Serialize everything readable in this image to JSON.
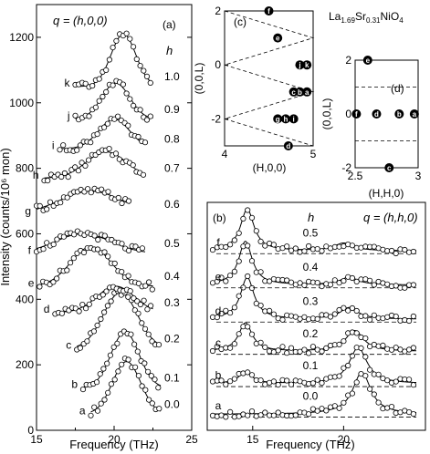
{
  "chart_data": [
    {
      "panel": "a",
      "type": "scatter",
      "panel_label": "(a)",
      "q_label": "q = (h,0,0)",
      "h_header": "h",
      "xlabel": "Frequency  (THz)",
      "ylabel": "Intensity  (counts/10⁶ mon)",
      "xlim": [
        15,
        25
      ],
      "ylim": [
        0,
        1300
      ],
      "xticks": [
        15,
        20,
        25
      ],
      "yticks": [
        0,
        200,
        400,
        600,
        800,
        1000,
        1200
      ],
      "series": [
        {
          "letter": "a",
          "h": "0.0",
          "offset": 50,
          "peak": 20.8,
          "amp": 160,
          "width": 0.9,
          "xmin": 18.5,
          "xmax": 23.0
        },
        {
          "letter": "b",
          "h": "0.1",
          "offset": 130,
          "peak": 20.7,
          "amp": 170,
          "width": 0.9,
          "xmin": 18.0,
          "xmax": 23.0
        },
        {
          "letter": "c",
          "h": "0.2",
          "offset": 250,
          "peak": 20.4,
          "amp": 170,
          "width": 1.1,
          "xmin": 17.6,
          "xmax": 23.0
        },
        {
          "letter": "d",
          "h": "0.3",
          "offset": 360,
          "peak": 20.1,
          "amp": 80,
          "width": 1.2,
          "xmin": 16.2,
          "xmax": 22.5
        },
        {
          "letter": "e",
          "h": "0.4",
          "offset": 440,
          "peak": 18.5,
          "amp": 120,
          "width": 1.3,
          "xmin": 15.2,
          "xmax": 22.5
        },
        {
          "letter": "f",
          "h": "0.5",
          "offset": 540,
          "peak": 18.0,
          "amp": 60,
          "width": 1.8,
          "xmin": 15.0,
          "xmax": 22.0
        },
        {
          "letter": "g",
          "h": "0.6",
          "offset": 660,
          "peak": 18.5,
          "amp": 70,
          "width": 2.0,
          "xmin": 15.0,
          "xmax": 21.0
        },
        {
          "letter": "h",
          "h": "0.7",
          "offset": 770,
          "peak": 19.5,
          "amp": 80,
          "width": 1.3,
          "xmin": 15.5,
          "xmax": 22.0
        },
        {
          "letter": "i",
          "h": "0.8",
          "offset": 860,
          "peak": 20.0,
          "amp": 90,
          "width": 1.0,
          "xmin": 16.5,
          "xmax": 22.0
        },
        {
          "letter": "j",
          "h": "0.9",
          "offset": 950,
          "peak": 20.1,
          "amp": 110,
          "width": 0.9,
          "xmin": 17.5,
          "xmax": 22.5
        },
        {
          "letter": "k",
          "h": "1.0",
          "offset": 1050,
          "peak": 20.6,
          "amp": 160,
          "width": 0.8,
          "xmin": 17.5,
          "xmax": 22.5
        }
      ]
    },
    {
      "panel": "b",
      "type": "scatter",
      "panel_label": "(b)",
      "q_label": "q = (h,h,0)",
      "h_header": "h",
      "xlabel": "Frequency  (THz)",
      "xlim": [
        12.5,
        24.5
      ],
      "xticks": [
        15,
        20
      ],
      "ylim": [
        0,
        12
      ],
      "series": [
        {
          "letter": "a",
          "h": "0.0",
          "base": 0.7,
          "p1": 14.6,
          "a1": 0.0,
          "p2": 21.0,
          "a2": 2.2
        },
        {
          "letter": "b",
          "h": "0.1",
          "base": 2.3,
          "p1": 14.6,
          "a1": 0.6,
          "p2": 20.8,
          "a2": 1.9
        },
        {
          "letter": "c",
          "h": "0.2",
          "base": 4.0,
          "p1": 14.6,
          "a1": 1.5,
          "p2": 20.6,
          "a2": 1.1
        },
        {
          "letter": "d",
          "h": "0.3",
          "base": 5.7,
          "p1": 14.7,
          "a1": 2.2,
          "p2": 20.3,
          "a2": 0.6
        },
        {
          "letter": "e",
          "h": "0.4",
          "base": 7.5,
          "p1": 14.6,
          "a1": 2.3,
          "p2": 20.3,
          "a2": 0.4
        },
        {
          "letter": "f",
          "h": "0.5",
          "base": 9.3,
          "p1": 14.7,
          "a1": 2.2,
          "p2": 20.0,
          "a2": 0.4
        }
      ]
    },
    {
      "panel": "c",
      "type": "scatter",
      "panel_label": "(c)",
      "xlabel": "(H,0,0)",
      "ylabel": "(0,0,L)",
      "xlim": [
        4,
        5
      ],
      "ylim": [
        -3,
        2
      ],
      "xticks": [
        4,
        5
      ],
      "yticks": [
        -2,
        0,
        2
      ],
      "points": [
        {
          "label": "f",
          "h": 4.5,
          "l": 2.0
        },
        {
          "label": "e",
          "h": 4.6,
          "l": 1.0
        },
        {
          "label": "j",
          "h": 4.85,
          "l": 0.0
        },
        {
          "label": "k",
          "h": 4.93,
          "l": 0.0
        },
        {
          "label": "c",
          "h": 4.78,
          "l": -1.0
        },
        {
          "label": "b",
          "h": 4.85,
          "l": -1.0
        },
        {
          "label": "a",
          "h": 4.93,
          "l": -1.0
        },
        {
          "label": "g",
          "h": 4.6,
          "l": -2.0
        },
        {
          "label": "h",
          "h": 4.69,
          "l": -2.0
        },
        {
          "label": "i",
          "h": 4.78,
          "l": -2.0
        },
        {
          "label": "d",
          "h": 4.72,
          "l": -3.0
        }
      ]
    },
    {
      "panel": "d",
      "type": "scatter",
      "panel_label": "(d)",
      "formula_main": "La",
      "formula_sub1": "1.69",
      "formula_mid": "Sr",
      "formula_sub2": "0.31",
      "formula_end": "NiO",
      "formula_sub3": "4",
      "xlabel": "(H,H,0)",
      "ylabel": "(0,0,L)",
      "xlim": [
        2.5,
        3
      ],
      "ylim": [
        -2,
        2
      ],
      "xticks": [
        "2.5",
        "3"
      ],
      "yticks": [
        "-2",
        "0",
        "2"
      ],
      "points": [
        {
          "label": "e",
          "h": 2.6,
          "l": 2.0
        },
        {
          "label": "f",
          "h": 2.51,
          "l": 0.0
        },
        {
          "label": "d",
          "h": 2.67,
          "l": 0.0
        },
        {
          "label": "b",
          "h": 2.85,
          "l": 0.0
        },
        {
          "label": "a",
          "h": 2.97,
          "l": 0.0
        },
        {
          "label": "c",
          "h": 2.77,
          "l": -2.0
        }
      ]
    }
  ]
}
